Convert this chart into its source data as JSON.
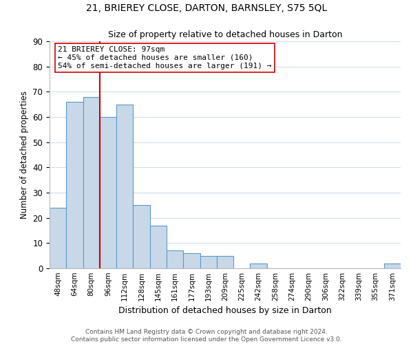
{
  "title1": "21, BRIEREY CLOSE, DARTON, BARNSLEY, S75 5QL",
  "title2": "Size of property relative to detached houses in Darton",
  "xlabel": "Distribution of detached houses by size in Darton",
  "ylabel": "Number of detached properties",
  "bin_labels": [
    "48sqm",
    "64sqm",
    "80sqm",
    "96sqm",
    "112sqm",
    "128sqm",
    "145sqm",
    "161sqm",
    "177sqm",
    "193sqm",
    "209sqm",
    "225sqm",
    "242sqm",
    "258sqm",
    "274sqm",
    "290sqm",
    "306sqm",
    "322sqm",
    "339sqm",
    "355sqm",
    "371sqm"
  ],
  "bar_heights": [
    24,
    66,
    68,
    60,
    65,
    25,
    17,
    7,
    6,
    5,
    5,
    0,
    2,
    0,
    0,
    0,
    0,
    0,
    0,
    0,
    2
  ],
  "bar_color": "#c8d8e8",
  "bar_edge_color": "#5a9ac8",
  "subject_line_color": "#cc0000",
  "annotation_line1": "21 BRIEREY CLOSE: 97sqm",
  "annotation_line2": "← 45% of detached houses are smaller (160)",
  "annotation_line3": "54% of semi-detached houses are larger (191) →",
  "annotation_box_color": "#ffffff",
  "annotation_box_edge": "#cc0000",
  "ylim": [
    0,
    90
  ],
  "yticks": [
    0,
    10,
    20,
    30,
    40,
    50,
    60,
    70,
    80,
    90
  ],
  "footer1": "Contains HM Land Registry data © Crown copyright and database right 2024.",
  "footer2": "Contains public sector information licensed under the Open Government Licence v3.0.",
  "background_color": "#ffffff",
  "grid_color": "#d0dce8",
  "title1_fontsize": 10,
  "title2_fontsize": 9
}
